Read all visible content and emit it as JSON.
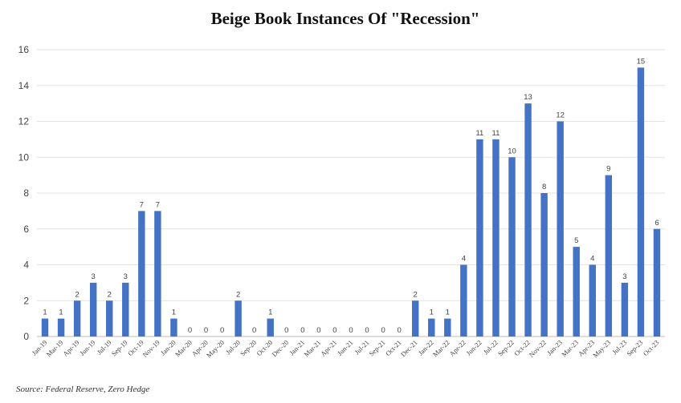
{
  "chart_data": {
    "type": "bar",
    "title": "Beige Book Instances Of  \"Recession\"",
    "xlabel": "",
    "ylabel": "",
    "ylim": [
      0,
      16
    ],
    "yticks": [
      0,
      2,
      4,
      6,
      8,
      10,
      12,
      14,
      16
    ],
    "grid": true,
    "legend": "none",
    "bar_color": "#4472C4",
    "categories": [
      "Jan-19",
      "Mar-19",
      "Apr-19",
      "Jun-19",
      "Jul-19",
      "Sep-19",
      "Oct-19",
      "Nov-19",
      "Jan-20",
      "Mar-20",
      "Apr-20",
      "May-20",
      "Jul-20",
      "Sep-20",
      "Oct-20",
      "Dec-20",
      "Jan-21",
      "Mar-21",
      "Apr-21",
      "Jun-21",
      "Jul-21",
      "Sep-21",
      "Oct-21",
      "Dec-21",
      "Jan-22",
      "Mar-22",
      "Apr-22",
      "Jun-22",
      "Jul-22",
      "Sep-22",
      "Oct-22",
      "Nov-22",
      "Jan-23",
      "Mar-23",
      "Apr-23",
      "May-23",
      "Jul-23",
      "Sep-23",
      "Oct-23"
    ],
    "values": [
      1,
      1,
      2,
      3,
      2,
      3,
      7,
      7,
      1,
      0,
      0,
      0,
      2,
      0,
      1,
      0,
      0,
      0,
      0,
      0,
      0,
      0,
      0,
      2,
      1,
      1,
      4,
      11,
      11,
      10,
      13,
      8,
      12,
      5,
      4,
      9,
      3,
      15,
      6
    ]
  },
  "source": "Source: Federal Reserve, Zero Hedge"
}
